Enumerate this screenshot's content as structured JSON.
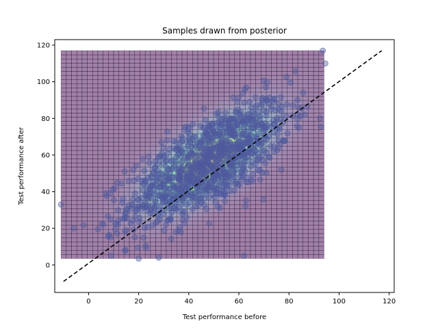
{
  "chart_data": {
    "type": "scatter",
    "title": "Samples drawn from posterior",
    "xlabel": "Test performance before",
    "ylabel": "Test performance after",
    "xlim": [
      -13.5,
      122
    ],
    "ylim": [
      -15,
      123
    ],
    "xticks": [
      0,
      20,
      40,
      60,
      80,
      100,
      120
    ],
    "yticks": [
      0,
      20,
      40,
      60,
      80,
      100,
      120
    ],
    "grid": false,
    "legend": "none",
    "density": {
      "type": "heatmap",
      "colormap": "viridis",
      "opacity": 0.5,
      "x_range": [
        -11,
        94
      ],
      "y_range": [
        3.5,
        117
      ],
      "bins": 50,
      "peak": [
        48,
        57
      ],
      "spread": [
        16,
        17
      ],
      "correlation": 0.7
    },
    "samples": {
      "marker": "circle",
      "fill": "#4f5a9e",
      "fill_opacity": 0.4,
      "count": 1200,
      "mean": [
        48,
        56
      ],
      "sd": [
        16,
        17
      ],
      "correlation": 0.7,
      "notable_points": [
        [
          -11,
          33
        ],
        [
          -6,
          20
        ],
        [
          93.5,
          117
        ],
        [
          94.5,
          110
        ],
        [
          20,
          3.5
        ],
        [
          28,
          4
        ],
        [
          9,
          5
        ],
        [
          62,
          5
        ]
      ]
    },
    "reference_line": {
      "style": "dashed",
      "color": "#000000",
      "x": [
        -10,
        117
      ],
      "y": [
        -9,
        117
      ]
    },
    "colors": {
      "axes": "#000000",
      "background": "#ffffff"
    }
  }
}
